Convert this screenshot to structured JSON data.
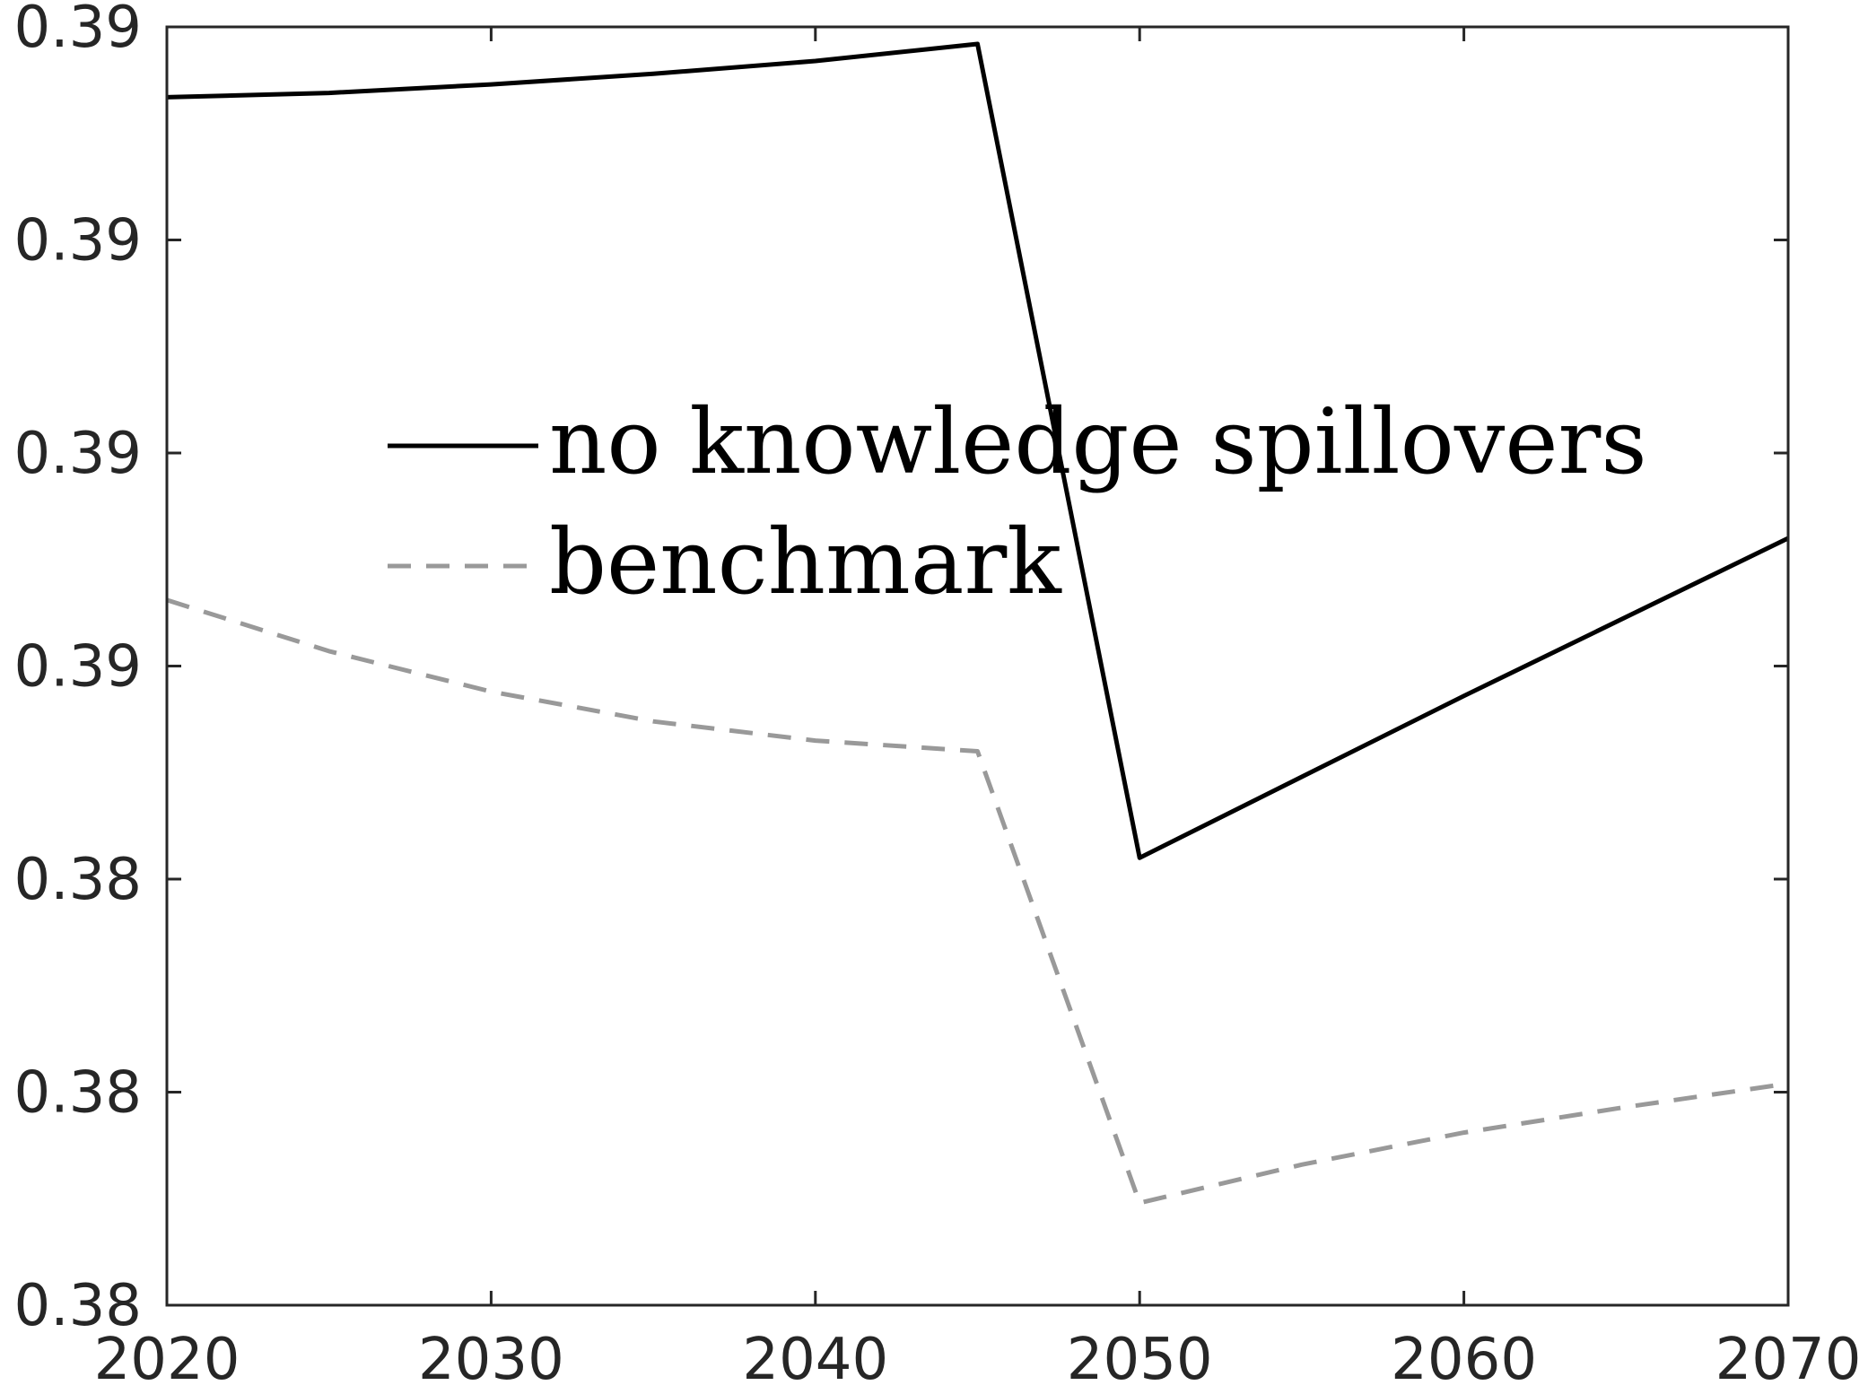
{
  "chart_data": {
    "type": "line",
    "title": "",
    "xlabel": "",
    "ylabel": "",
    "xlim": [
      2020,
      2070
    ],
    "ylim": [
      0,
      6
    ],
    "x_ticks": [
      2020,
      2030,
      2040,
      2050,
      2060,
      2070
    ],
    "x_tick_labels": [
      "2020",
      "2030",
      "2040",
      "2050",
      "2060",
      "2070"
    ],
    "y_ticks": [
      0,
      1,
      2,
      3,
      4,
      5,
      6
    ],
    "y_tick_labels": [
      "0.38",
      "0.38",
      "0.38",
      "0.39",
      "0.39",
      "0.39",
      "0.39"
    ],
    "grid": false,
    "legend_position": "upper-center",
    "series": [
      {
        "name": "no knowledge spillovers",
        "color": "#000000",
        "dash": "solid",
        "x": [
          2020,
          2025,
          2030,
          2035,
          2040,
          2045,
          2050,
          2055,
          2060,
          2065,
          2070
        ],
        "y": [
          5.67,
          5.69,
          5.73,
          5.78,
          5.84,
          5.92,
          2.1,
          2.48,
          2.86,
          3.23,
          3.6
        ]
      },
      {
        "name": "benchmark",
        "color": "#999999",
        "dash": "dashed",
        "x": [
          2020,
          2025,
          2030,
          2035,
          2040,
          2045,
          2050,
          2055,
          2060,
          2065,
          2070
        ],
        "y": [
          3.31,
          3.07,
          2.88,
          2.74,
          2.65,
          2.6,
          0.48,
          0.66,
          0.81,
          0.93,
          1.04
        ]
      }
    ]
  }
}
